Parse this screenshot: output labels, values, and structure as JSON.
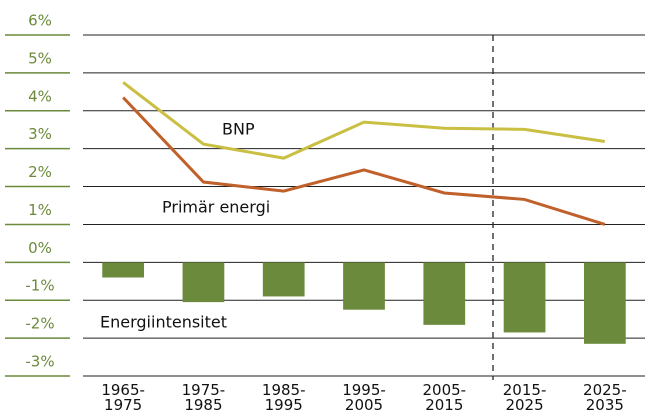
{
  "chart_data": {
    "type": "combo",
    "categories": [
      "1965-1975",
      "1975-1985",
      "1985-1995",
      "1995-2005",
      "2005-2015",
      "2015-2025",
      "2025-2035"
    ],
    "ylim": [
      -3,
      6
    ],
    "yticks": [
      {
        "value": 6,
        "label": "6%"
      },
      {
        "value": 5,
        "label": "5%"
      },
      {
        "value": 4,
        "label": "4%"
      },
      {
        "value": 3,
        "label": "3%"
      },
      {
        "value": 2,
        "label": "2%"
      },
      {
        "value": 1,
        "label": "1%"
      },
      {
        "value": 0,
        "label": "0%"
      },
      {
        "value": -1,
        "label": "-1%"
      },
      {
        "value": -2,
        "label": "-2%"
      },
      {
        "value": -3,
        "label": "-3%"
      }
    ],
    "grid": true,
    "series": [
      {
        "name": "Energiintensitet",
        "type": "bar",
        "color": "#6b8a3c",
        "values": [
          -0.4,
          -1.05,
          -0.9,
          -1.25,
          -1.65,
          -1.85,
          -2.15
        ]
      },
      {
        "name": "BNP",
        "type": "line",
        "color": "#c9c043",
        "values": [
          4.75,
          3.12,
          2.75,
          3.7,
          3.54,
          3.51,
          3.19
        ]
      },
      {
        "name": "Primär energi",
        "type": "line",
        "color": "#c0602a",
        "values": [
          4.35,
          2.12,
          1.88,
          2.44,
          1.83,
          1.66,
          1.0
        ]
      }
    ]
  }
}
